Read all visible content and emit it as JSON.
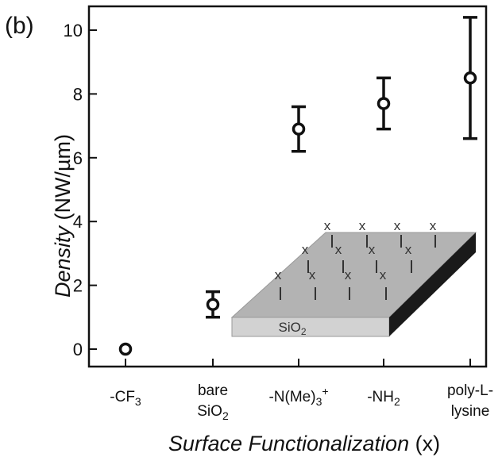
{
  "chart_data": {
    "type": "scatter",
    "panel_label": "(b)",
    "ylabel": {
      "italic": "Density",
      "unit": " (NW/µm)"
    },
    "xlabel": {
      "italic": "Surface Functionalization",
      "unit": " (x)"
    },
    "ylim": [
      0,
      10.5
    ],
    "yticks": [
      0,
      2,
      4,
      6,
      8,
      10
    ],
    "ytick_labels": [
      "0",
      "2",
      "4",
      "6",
      "8",
      "10"
    ],
    "categories": [
      {
        "lines": [
          "-CF",
          "3",
          ""
        ],
        "sub": true,
        "sup": false
      },
      {
        "lines": [
          "bare",
          "SiO",
          "2"
        ],
        "sub": true,
        "sup": false
      },
      {
        "lines": [
          "-N(Me)",
          "3",
          "+"
        ],
        "sub": true,
        "sup": true
      },
      {
        "lines": [
          "-NH",
          "2",
          ""
        ],
        "sub": true,
        "sup": false
      },
      {
        "lines": [
          "poly-L-",
          "lysine",
          ""
        ],
        "sub": false,
        "sup": false
      }
    ],
    "x_positions": [
      0,
      1,
      2,
      3,
      4
    ],
    "values": [
      0.0,
      1.4,
      6.9,
      7.7,
      8.5
    ],
    "err_low": [
      0.0,
      0.4,
      0.7,
      0.8,
      1.9
    ],
    "err_high": [
      0.0,
      0.4,
      0.7,
      0.8,
      1.9
    ],
    "grid": false,
    "marker": "open-circle",
    "color": "#111111",
    "inset": {
      "substrate_label": "SiO",
      "substrate_sub": "2",
      "mark": "x",
      "top_color": "#b3b3b3",
      "front_color": "#d2d2d2",
      "side_color": "#1a1a1a"
    }
  }
}
